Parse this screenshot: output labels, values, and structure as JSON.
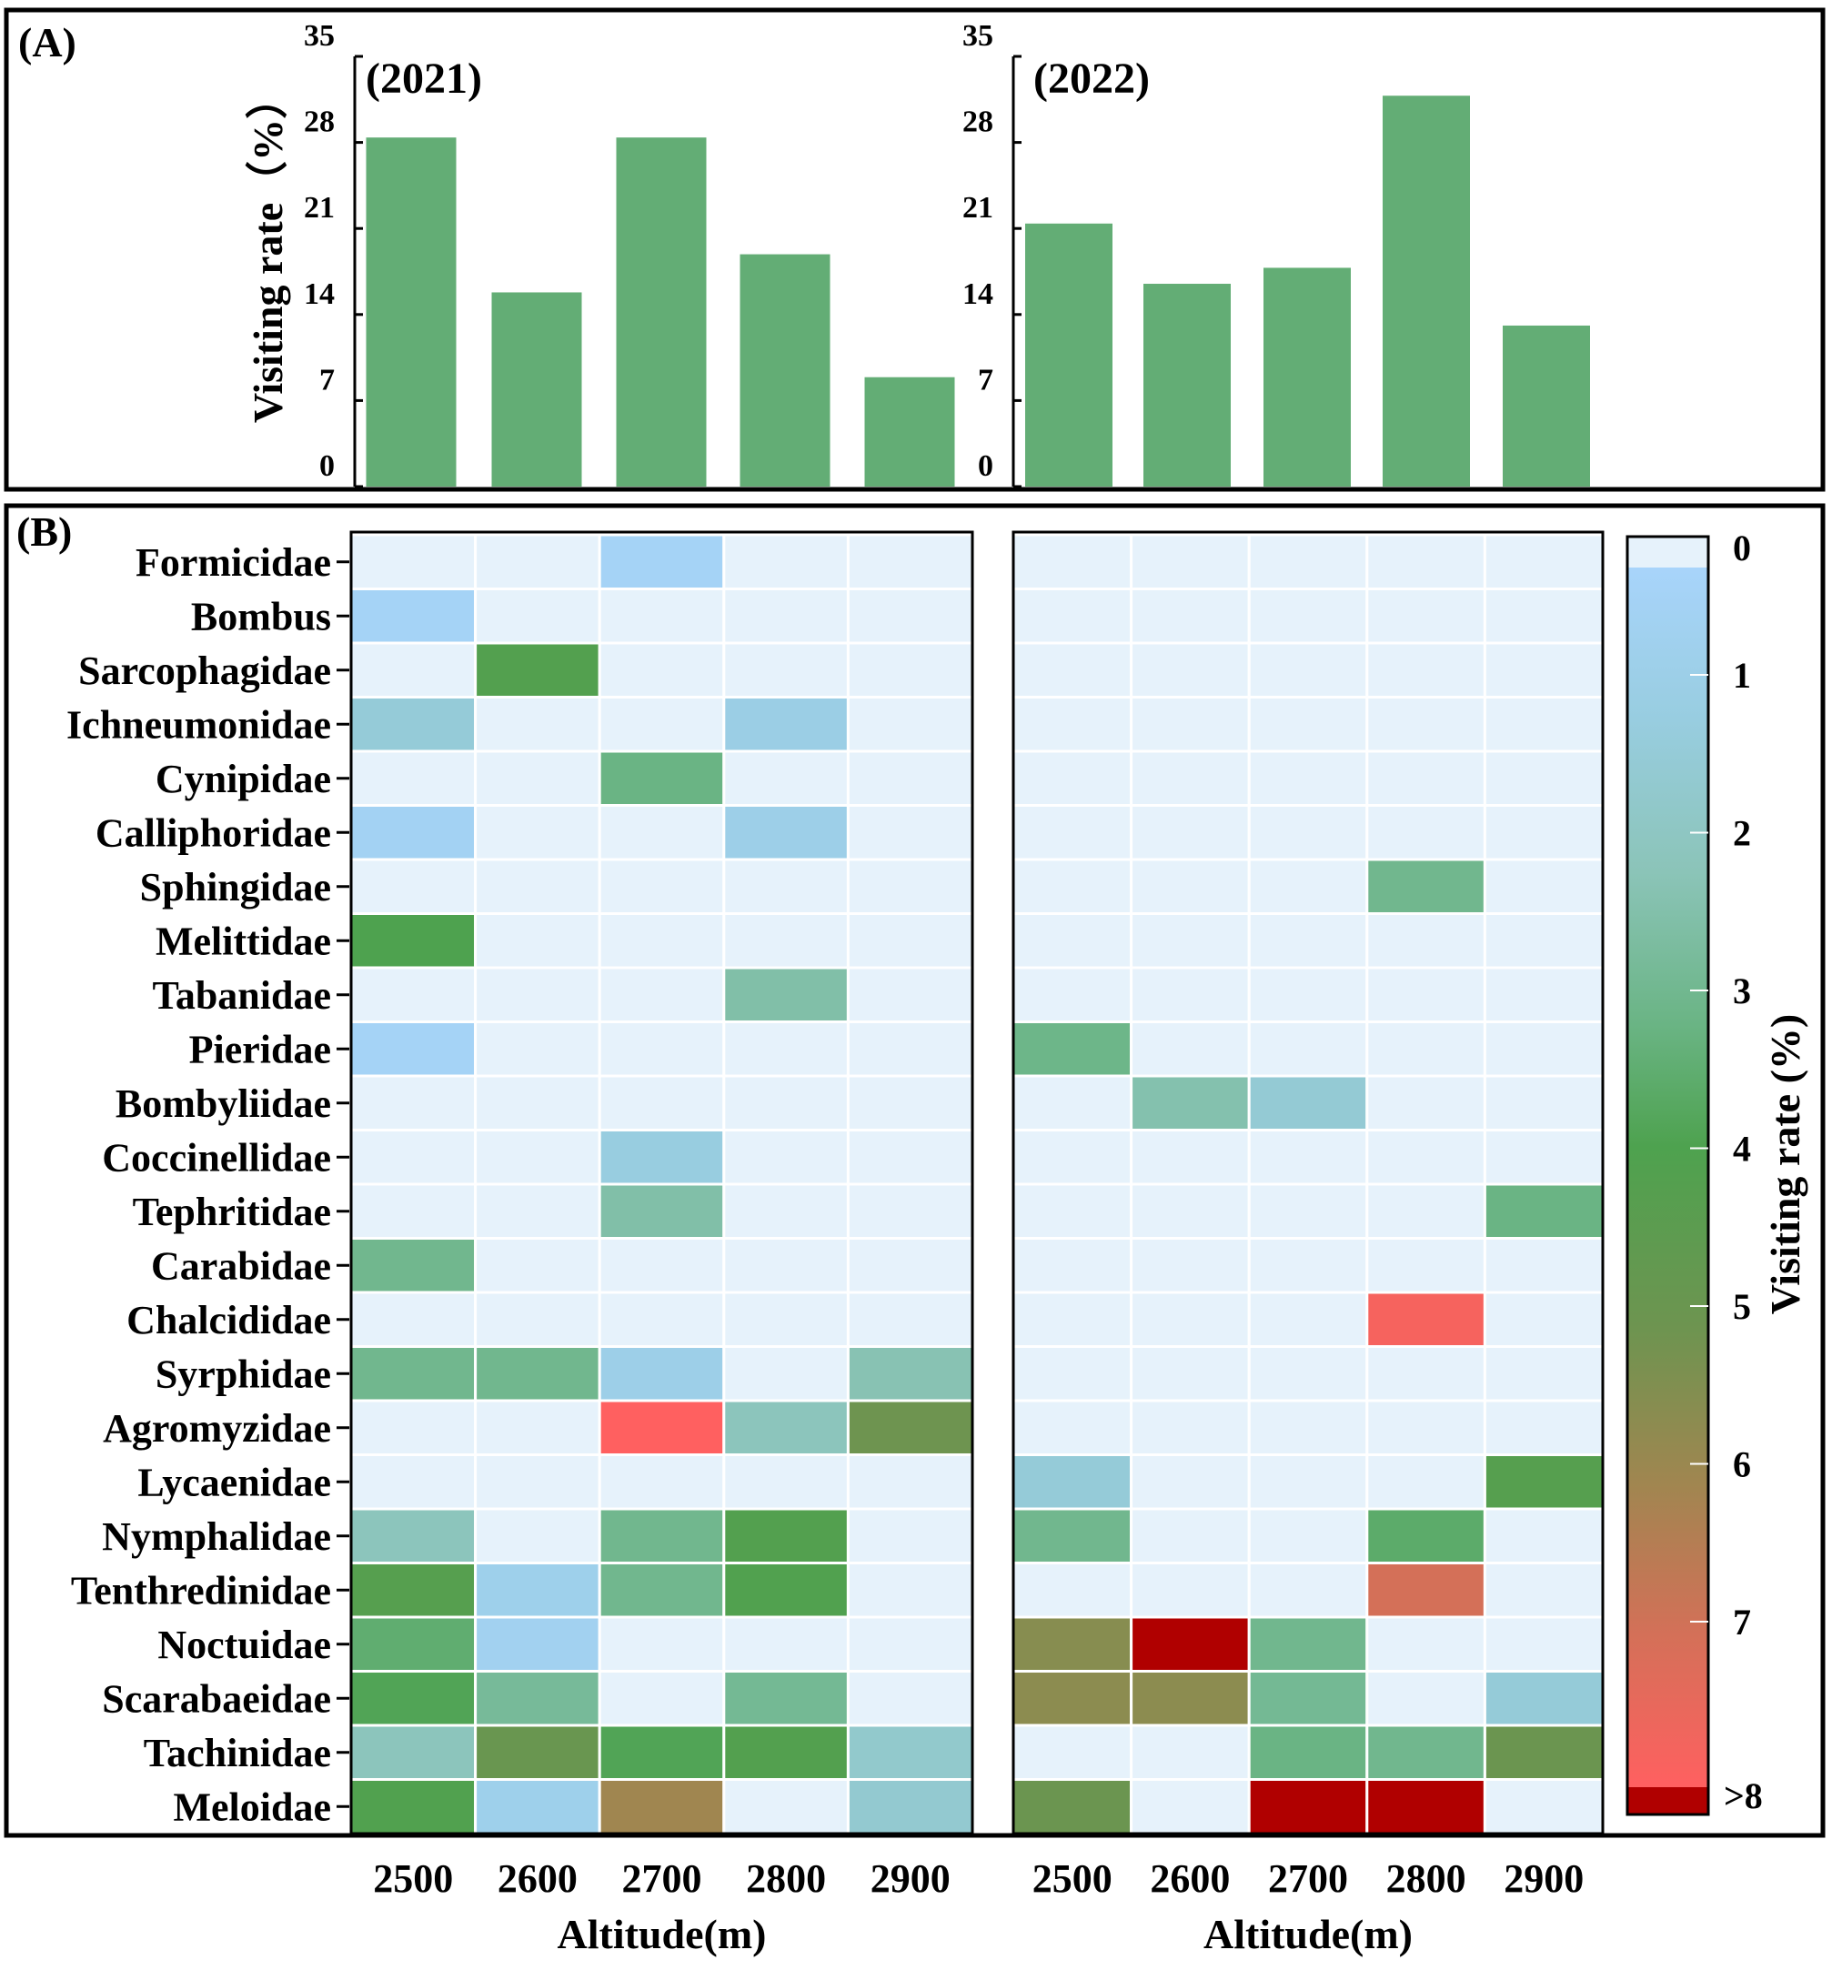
{
  "panel_labels": {
    "a": "(A)",
    "b": "(B)"
  },
  "chart_data": [
    {
      "type": "bar",
      "title": "(2021)",
      "categories": [
        "2500",
        "2600",
        "2700",
        "2800",
        "2900"
      ],
      "values": [
        28.4,
        15.8,
        28.4,
        18.9,
        8.9
      ],
      "ylabel": "Visiting rate（%）",
      "ylim": [
        0,
        35
      ],
      "yticks": [
        "0",
        "7",
        "14",
        "21",
        "28",
        "35"
      ],
      "color": "#63ad75"
    },
    {
      "type": "bar",
      "title": "(2022)",
      "categories": [
        "2500",
        "2600",
        "2700",
        "2800",
        "2900"
      ],
      "values": [
        21.4,
        16.5,
        17.8,
        31.8,
        13.1
      ],
      "ylim": [
        0,
        35
      ],
      "yticks": [
        "0",
        "7",
        "14",
        "21",
        "28",
        "35"
      ],
      "color": "#63ad75"
    },
    {
      "type": "heatmap",
      "year": "2021",
      "xlabel": "Altitude(m)",
      "x": [
        "2500",
        "2600",
        "2700",
        "2800",
        "2900"
      ],
      "y": [
        "Formicidae",
        "Bombus",
        "Sarcophagidae",
        "Ichneumonidae",
        "Cynipidae",
        "Calliphoridae",
        "Sphingidae",
        "Melittidae",
        "Tabanidae",
        "Pieridae",
        "Bombyliidae",
        "Coccinellidae",
        "Tephritidae",
        "Carabidae",
        "Chalcididae",
        "Syrphidae",
        "Agromyzidae",
        "Lycaenidae",
        "Nymphalidae",
        "Tenthredinidae",
        "Noctuidae",
        "Scarabaeidae",
        "Tachinidae",
        "Meloidae"
      ],
      "values": [
        [
          0,
          0,
          0.2,
          0,
          0
        ],
        [
          0.2,
          0,
          0,
          0,
          0
        ],
        [
          0,
          4.0,
          0,
          0,
          0
        ],
        [
          1.2,
          0,
          0,
          0.8,
          0
        ],
        [
          0,
          0,
          3.0,
          0,
          0
        ],
        [
          0.3,
          0,
          0,
          0.7,
          0
        ],
        [
          0,
          0,
          0,
          0,
          0
        ],
        [
          3.8,
          0,
          0,
          0,
          0
        ],
        [
          0,
          0,
          0,
          2.3,
          0
        ],
        [
          0.2,
          0,
          0,
          0,
          0
        ],
        [
          0,
          0,
          0,
          0,
          0
        ],
        [
          0,
          0,
          1.0,
          0,
          0
        ],
        [
          0,
          0,
          2.3,
          0,
          0
        ],
        [
          2.8,
          0,
          0,
          0,
          0
        ],
        [
          0,
          0,
          0,
          0,
          0
        ],
        [
          2.8,
          2.8,
          0.7,
          0,
          2.1
        ],
        [
          0,
          0,
          8.0,
          1.9,
          5.0
        ],
        [
          0,
          0,
          0,
          0,
          0
        ],
        [
          1.9,
          0,
          2.8,
          4.0,
          0
        ],
        [
          4.1,
          0.6,
          2.8,
          3.9,
          0
        ],
        [
          3.3,
          0.4,
          0,
          0,
          0
        ],
        [
          3.7,
          2.6,
          0,
          2.7,
          0
        ],
        [
          1.9,
          4.8,
          3.7,
          4.0,
          1.5
        ],
        [
          3.9,
          0.6,
          6.0,
          0,
          1.4
        ]
      ]
    },
    {
      "type": "heatmap",
      "year": "2022",
      "xlabel": "Altitude(m)",
      "x": [
        "2500",
        "2600",
        "2700",
        "2800",
        "2900"
      ],
      "values": [
        [
          0,
          0,
          0,
          0,
          0
        ],
        [
          0,
          0,
          0,
          0,
          0
        ],
        [
          0,
          0,
          0,
          0,
          0
        ],
        [
          0,
          0,
          0,
          0,
          0
        ],
        [
          0,
          0,
          0,
          0,
          0
        ],
        [
          0,
          0,
          0,
          0,
          0
        ],
        [
          0,
          0,
          0,
          2.8,
          0
        ],
        [
          0,
          0,
          0,
          0,
          0
        ],
        [
          0,
          0,
          0,
          0,
          0
        ],
        [
          2.9,
          0,
          0,
          0,
          0
        ],
        [
          0,
          2.2,
          1.3,
          0,
          0
        ],
        [
          0,
          0,
          0,
          0,
          0
        ],
        [
          0,
          0,
          0,
          0,
          3.0
        ],
        [
          0,
          0,
          0,
          0,
          0
        ],
        [
          0,
          0,
          0,
          7.8,
          0
        ],
        [
          0,
          0,
          0,
          0,
          0
        ],
        [
          0,
          0,
          0,
          0,
          0
        ],
        [
          1.2,
          0,
          0,
          0,
          4.1
        ],
        [
          2.8,
          0,
          0,
          3.4,
          0
        ],
        [
          0,
          0,
          0,
          7.0,
          0
        ],
        [
          5.5,
          9,
          2.8,
          0,
          0
        ],
        [
          5.6,
          5.6,
          2.7,
          0,
          1.2
        ],
        [
          0,
          0,
          3.0,
          2.8,
          4.9
        ],
        [
          4.9,
          0,
          9,
          9,
          0
        ]
      ]
    }
  ],
  "colorbar": {
    "label": "Visiting rate (%)",
    "ticks": [
      "0",
      "1",
      "2",
      "3",
      "4",
      "5",
      "6",
      "7",
      ">8"
    ],
    "stops": [
      [
        0,
        "#a8d4fb"
      ],
      [
        1,
        "#98cde0"
      ],
      [
        2,
        "#8bc4b8"
      ],
      [
        3,
        "#6ab484"
      ],
      [
        3.8,
        "#4ea24f"
      ],
      [
        5,
        "#6e9450"
      ],
      [
        6,
        "#a08650"
      ],
      [
        7,
        "#d47058"
      ],
      [
        8,
        "#ff6060"
      ]
    ],
    "zero_color": "#e6f2fb",
    "over_color": "#b00000"
  }
}
